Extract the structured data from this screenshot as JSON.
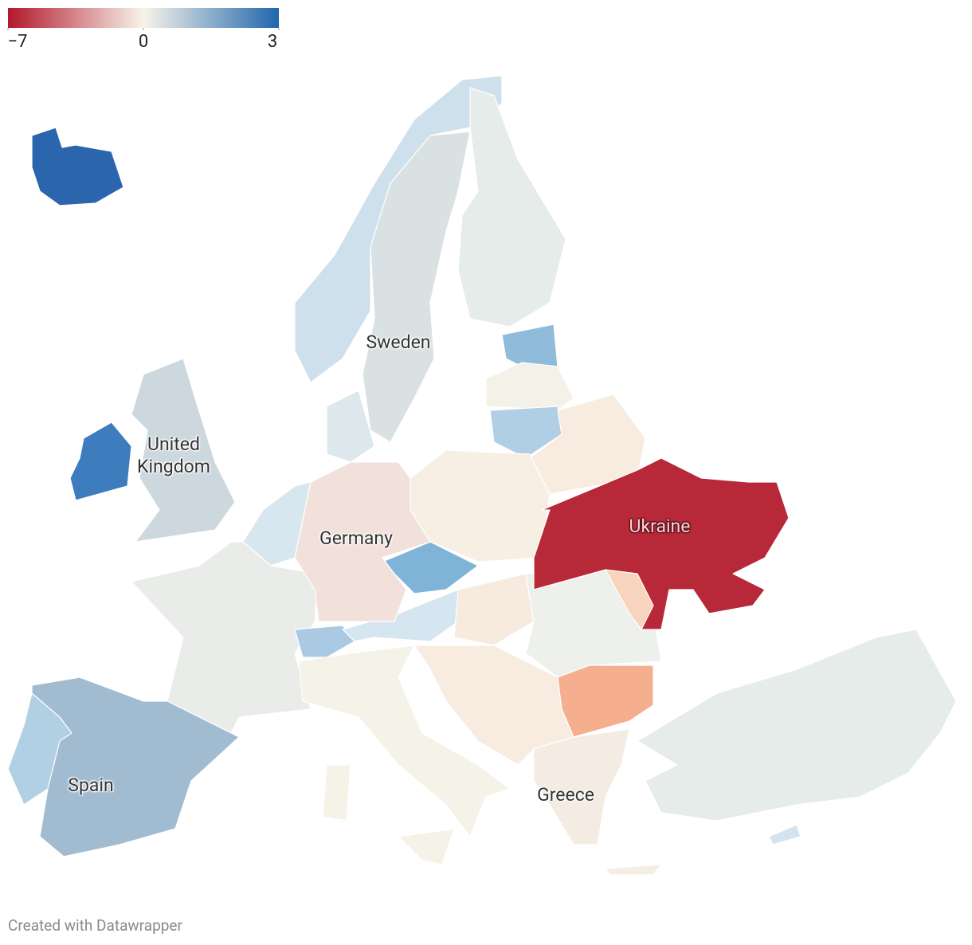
{
  "map": {
    "legend": {
      "colors": [
        "#b2182b",
        "#f7f4ea",
        "#2166ac"
      ],
      "ticks": [
        {
          "value": -7,
          "label": "−7"
        },
        0,
        3
      ]
    },
    "regions": [
      {
        "label": "Sweden",
        "value": 0.4
      },
      {
        "label": "United Kingdom",
        "value": 0.6
      },
      {
        "label": "Germany",
        "value": -0.6
      },
      {
        "label": "Ukraine",
        "value": -6.5
      },
      {
        "label": "Spain",
        "value": 1.2
      },
      {
        "label": "Greece",
        "value": -0.3
      }
    ],
    "credit": "Created with Datawrapper"
  }
}
